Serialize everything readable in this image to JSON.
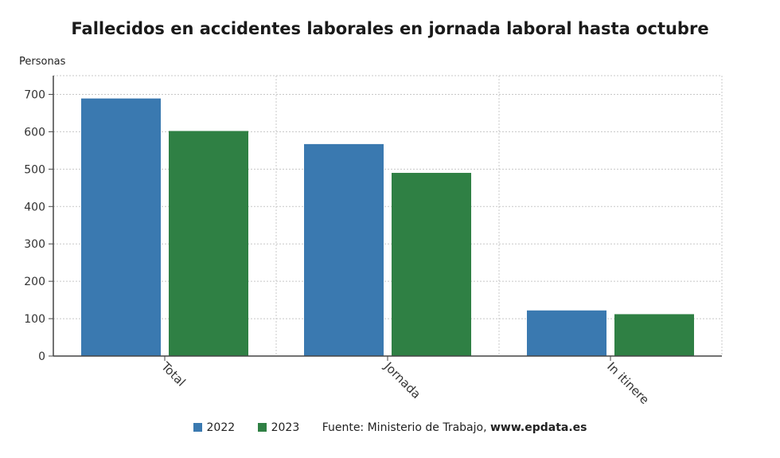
{
  "chart_data": {
    "type": "bar",
    "title": "Fallecidos en accidentes laborales en jornada laboral hasta octubre",
    "ylabel": "Personas",
    "xlabel": "",
    "categories": [
      "Total",
      "Jornada",
      "In itinere"
    ],
    "series": [
      {
        "name": "2022",
        "color": "#3a79b0",
        "values": [
          689,
          567,
          122
        ]
      },
      {
        "name": "2023",
        "color": "#2f8044",
        "values": [
          602,
          490,
          112
        ]
      }
    ],
    "ylim": [
      0,
      750
    ],
    "yticks": [
      0,
      100,
      200,
      300,
      400,
      500,
      600,
      700
    ],
    "grid": true,
    "legend_position": "bottom"
  },
  "source": {
    "label": "Fuente: Ministerio de Trabajo,",
    "site": "www.epdata.es"
  }
}
